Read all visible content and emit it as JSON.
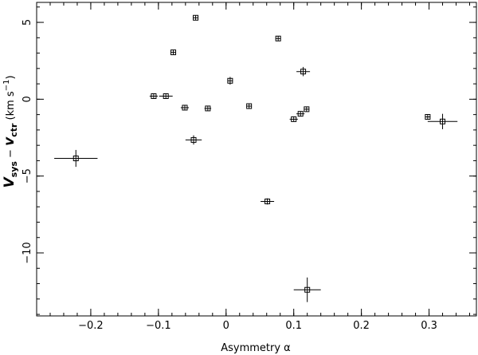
{
  "chart_data": {
    "type": "scatter",
    "xlabel": "Asymmetry α",
    "ylabel": {
      "v1": "V",
      "sub1": "sys",
      "op": " − ",
      "v2": "v",
      "sub2": "ctr",
      "unit": " (km s",
      "sup": "−1",
      "close": ")"
    },
    "xlim": [
      -0.28,
      0.37
    ],
    "ylim": [
      -14.1,
      6.3
    ],
    "xticks": [
      {
        "v": -0.2,
        "label": "−0.2"
      },
      {
        "v": -0.1,
        "label": "−0.1"
      },
      {
        "v": 0.0,
        "label": "0"
      },
      {
        "v": 0.1,
        "label": "0.1"
      },
      {
        "v": 0.2,
        "label": "0.2"
      },
      {
        "v": 0.3,
        "label": "0.3"
      }
    ],
    "yticks": [
      {
        "v": -10,
        "label": "−10"
      },
      {
        "v": -5,
        "label": "−5"
      },
      {
        "v": 0,
        "label": "0"
      },
      {
        "v": 5,
        "label": "5"
      }
    ],
    "x_minor_step": 0.02,
    "y_minor_step": 1,
    "points": [
      {
        "x": -0.222,
        "y": -3.85,
        "xerr": 0.032,
        "yerr": 0.55
      },
      {
        "x": -0.107,
        "y": 0.2,
        "xerr": 0.006,
        "yerr": 0.15
      },
      {
        "x": -0.089,
        "y": 0.2,
        "xerr": 0.01,
        "yerr": 0.15
      },
      {
        "x": -0.078,
        "y": 3.05,
        "xerr": 0.004,
        "yerr": 0.15
      },
      {
        "x": -0.061,
        "y": -0.55,
        "xerr": 0.006,
        "yerr": 0.15
      },
      {
        "x": -0.048,
        "y": -2.65,
        "xerr": 0.012,
        "yerr": 0.3
      },
      {
        "x": -0.045,
        "y": 5.3,
        "xerr": 0.004,
        "yerr": 0.15
      },
      {
        "x": -0.027,
        "y": -0.6,
        "xerr": 0.005,
        "yerr": 0.15
      },
      {
        "x": 0.006,
        "y": 1.2,
        "xerr": 0.004,
        "yerr": 0.25
      },
      {
        "x": 0.034,
        "y": -0.45,
        "xerr": 0.004,
        "yerr": 0.15
      },
      {
        "x": 0.061,
        "y": -6.65,
        "xerr": 0.01,
        "yerr": 0.2
      },
      {
        "x": 0.077,
        "y": 3.95,
        "xerr": 0.004,
        "yerr": 0.15
      },
      {
        "x": 0.1,
        "y": -1.3,
        "xerr": 0.006,
        "yerr": 0.15
      },
      {
        "x": 0.11,
        "y": -0.95,
        "xerr": 0.006,
        "yerr": 0.15
      },
      {
        "x": 0.114,
        "y": 1.8,
        "xerr": 0.01,
        "yerr": 0.3
      },
      {
        "x": 0.119,
        "y": -0.65,
        "xerr": 0.004,
        "yerr": 0.15
      },
      {
        "x": 0.12,
        "y": -12.4,
        "xerr": 0.02,
        "yerr": 0.8
      },
      {
        "x": 0.298,
        "y": -1.15,
        "xerr": 0.004,
        "yerr": 0.15
      },
      {
        "x": 0.32,
        "y": -1.45,
        "xerr": 0.022,
        "yerr": 0.5
      }
    ]
  }
}
